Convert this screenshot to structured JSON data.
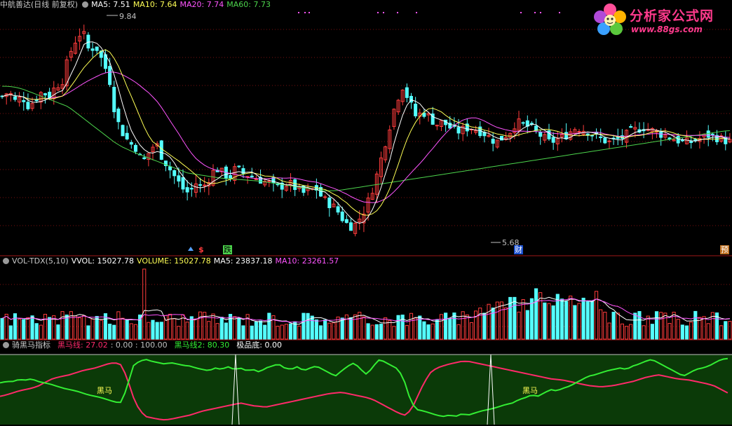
{
  "main_panel": {
    "title": "中航善达(日线 前复权)",
    "ma5": "MA5: 7.51",
    "ma10": "MA10: 7.64",
    "ma20": "MA20: 7.74",
    "ma60": "MA60: 7.73",
    "high_label": "9.84",
    "low_label": "5.68",
    "markers": [
      "$",
      "跌",
      "财",
      "预"
    ]
  },
  "volume_panel": {
    "title": "VOL-TDX(5,10)",
    "vvol": "VVOL: 15027.78",
    "volume": "VOLUME: 15027.78",
    "ma5": "MA5: 23837.18",
    "ma10": "MA10: 23261.57"
  },
  "indicator_panel": {
    "title": "骑黑马指标",
    "heima": "黑马线: 27.02",
    "range": ": 0.00 : 100.00",
    "heima2": "黑马线2: 80.30",
    "jipindi": "极品底: 0.00",
    "signal_label": "黑马"
  },
  "logo": {
    "name": "分析家公式网",
    "url": "www.88gs.com"
  },
  "colors": {
    "up": "#ff3c3c",
    "down": "#54ffff",
    "ma5": "#ffffff",
    "ma10": "#ffff55",
    "ma20": "#ff55ff",
    "ma60": "#4cd44c",
    "indicator_bg": "#0b3a08",
    "heima_line": "#ff2a6a",
    "heima2_line": "#33ee33"
  },
  "chart_data": {
    "type": "line",
    "title": "中航善达(日线 前复权)",
    "xlabel": "",
    "ylabel": "",
    "price_high": 9.84,
    "price_low": 5.68,
    "ylim": [
      5.4,
      10.1
    ],
    "series": [
      {
        "name": "MA5",
        "last": 7.51
      },
      {
        "name": "MA10",
        "last": 7.64
      },
      {
        "name": "MA20",
        "last": 7.74
      },
      {
        "name": "MA60",
        "last": 7.73
      }
    ],
    "ma60_path": [
      8.6,
      8.6,
      8.58,
      8.55,
      8.5,
      8.45,
      8.4,
      8.35,
      8.3,
      8.25,
      8.2,
      8.1,
      8.0,
      7.9,
      7.8,
      7.7,
      7.6,
      7.5,
      7.42,
      7.36,
      7.3,
      7.25,
      7.2,
      7.15,
      7.1,
      7.05,
      7.0,
      6.95,
      6.9,
      6.88,
      6.86,
      6.84,
      6.82,
      6.8,
      6.79,
      6.78,
      6.77,
      6.76,
      6.75,
      6.74,
      6.72,
      6.7,
      6.68,
      6.66,
      6.64,
      6.62,
      6.6,
      6.58,
      6.56,
      6.55,
      6.55,
      6.56,
      6.58,
      6.6,
      6.62,
      6.64,
      6.66,
      6.68,
      6.7,
      6.72,
      6.74,
      6.76,
      6.78,
      6.8,
      6.82,
      6.84,
      6.86,
      6.88,
      6.9,
      6.92,
      6.94,
      6.96,
      6.98,
      7.0,
      7.02,
      7.04,
      7.06,
      7.08,
      7.1,
      7.12,
      7.14,
      7.16,
      7.18,
      7.2,
      7.22,
      7.24,
      7.26,
      7.28,
      7.3,
      7.32,
      7.34,
      7.36,
      7.38,
      7.4,
      7.42,
      7.44,
      7.46,
      7.48,
      7.5,
      7.52,
      7.54,
      7.56,
      7.58,
      7.6,
      7.62,
      7.64,
      7.66,
      7.68,
      7.7,
      7.72,
      7.73
    ],
    "close_path": [
      8.4,
      8.5,
      8.3,
      8.4,
      8.2,
      8.35,
      8.5,
      8.4,
      8.6,
      8.7,
      9.2,
      9.5,
      9.7,
      9.3,
      9.4,
      9.1,
      8.8,
      8.0,
      7.7,
      7.5,
      7.4,
      7.1,
      7.3,
      7.5,
      7.2,
      7.0,
      6.8,
      6.6,
      6.5,
      6.7,
      6.6,
      6.8,
      7.0,
      6.9,
      6.8,
      7.0,
      6.9,
      6.85,
      6.8,
      6.75,
      6.7,
      6.6,
      6.65,
      6.7,
      6.6,
      6.5,
      6.55,
      6.6,
      6.4,
      6.3,
      6.2,
      6.0,
      5.85,
      5.9,
      6.1,
      6.4,
      6.8,
      7.3,
      7.8,
      8.3,
      8.6,
      8.3,
      8.0,
      8.1,
      8.0,
      7.85,
      7.9,
      7.8,
      7.7,
      7.75,
      7.8,
      7.75,
      7.7,
      7.6,
      7.5,
      7.6,
      7.7,
      7.9,
      7.85,
      7.8,
      7.7,
      7.6,
      7.5,
      7.55,
      7.6,
      7.7,
      7.8,
      7.75,
      7.7,
      7.6,
      7.55,
      7.5,
      7.55,
      7.6,
      7.7,
      7.75,
      7.8,
      7.75,
      7.7,
      7.65,
      7.6,
      7.55,
      7.5,
      7.5,
      7.55,
      7.6,
      7.65,
      7.6,
      7.55,
      7.51
    ]
  }
}
